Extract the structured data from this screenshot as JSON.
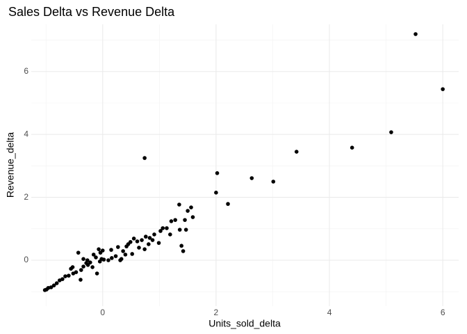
{
  "chart_data": {
    "type": "scatter",
    "title": "Sales Delta vs Revenue Delta",
    "x_label": "Units_sold_delta",
    "y_label": "Revenue_delta",
    "xlim": [
      -1.26,
      6.28
    ],
    "ylim": [
      -1.46,
      7.5
    ],
    "xticks": [
      0,
      2,
      4,
      6
    ],
    "yticks": [
      0,
      2,
      4,
      6
    ],
    "x_minor_ticks": [
      -1,
      1,
      3,
      5
    ],
    "y_minor_ticks": [
      -1,
      1,
      3,
      5,
      7
    ],
    "grid": true,
    "color": "#000000",
    "x": [
      5.52,
      6.0,
      5.09,
      4.4,
      3.42,
      3.01,
      2.63,
      2.02,
      2.0,
      2.21,
      0.74,
      1.35,
      1.56,
      1.5,
      1.59,
      1.45,
      1.28,
      1.21,
      1.36,
      1.13,
      1.06,
      1.02,
      1.47,
      1.39,
      1.42,
      0.99,
      0.91,
      0.83,
      0.88,
      0.81,
      0.74,
      0.69,
      0.61,
      0.55,
      0.49,
      0.42,
      0.36,
      0.4,
      0.33,
      0.23,
      0.16,
      0.1,
      0.02,
      -0.02,
      -0.05,
      -0.1,
      -0.12,
      -0.04,
      0,
      -0.07,
      -0.16,
      -0.22,
      -0.26,
      -0.29,
      -0.34,
      -0.38,
      -0.43,
      -0.39,
      -0.47,
      -0.52,
      -0.56,
      -0.6,
      -0.66,
      -0.71,
      -0.76,
      -0.81,
      -0.86,
      -0.91,
      -0.96,
      -0.99,
      -1.02,
      0.27,
      0.45,
      0.15,
      -0.27,
      -0.18,
      -0.53,
      -0.34,
      0.64,
      0.52,
      1.19,
      0.31,
      0.76
    ],
    "values": [
      7.19,
      5.44,
      4.07,
      3.58,
      3.45,
      2.5,
      2.61,
      2.77,
      2.15,
      1.79,
      3.25,
      1.77,
      1.68,
      1.57,
      1.37,
      1.28,
      1.28,
      1.24,
      0.97,
      1.02,
      1.02,
      0.93,
      0.97,
      0.46,
      0.29,
      0.55,
      0.82,
      0.71,
      0.64,
      0.51,
      0.35,
      0.64,
      0.6,
      0.69,
      0.58,
      0.44,
      0.29,
      0.18,
      0.04,
      0.13,
      0.07,
      0,
      0.02,
      0.04,
      -0.04,
      -0.42,
      0.09,
      0.24,
      0.31,
      0.35,
      0.18,
      -0.07,
      -0.15,
      -0.09,
      -0.2,
      -0.31,
      0.24,
      -0.62,
      -0.38,
      -0.42,
      -0.27,
      -0.49,
      -0.51,
      -0.6,
      -0.64,
      -0.73,
      -0.8,
      -0.86,
      -0.88,
      -0.93,
      -0.95,
      0.42,
      0.51,
      0.33,
      0,
      -0.22,
      -0.22,
      0.04,
      0.4,
      0.2,
      0.82,
      0,
      0.75
    ]
  }
}
